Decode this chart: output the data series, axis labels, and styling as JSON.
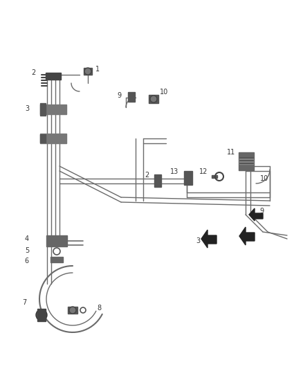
{
  "bg_color": "#ffffff",
  "line_color": "#6a6a6a",
  "dark_color": "#1a1a1a",
  "label_color": "#333333",
  "component_color": "#555555",
  "fig_width": 4.38,
  "fig_height": 5.33,
  "dpi": 100
}
